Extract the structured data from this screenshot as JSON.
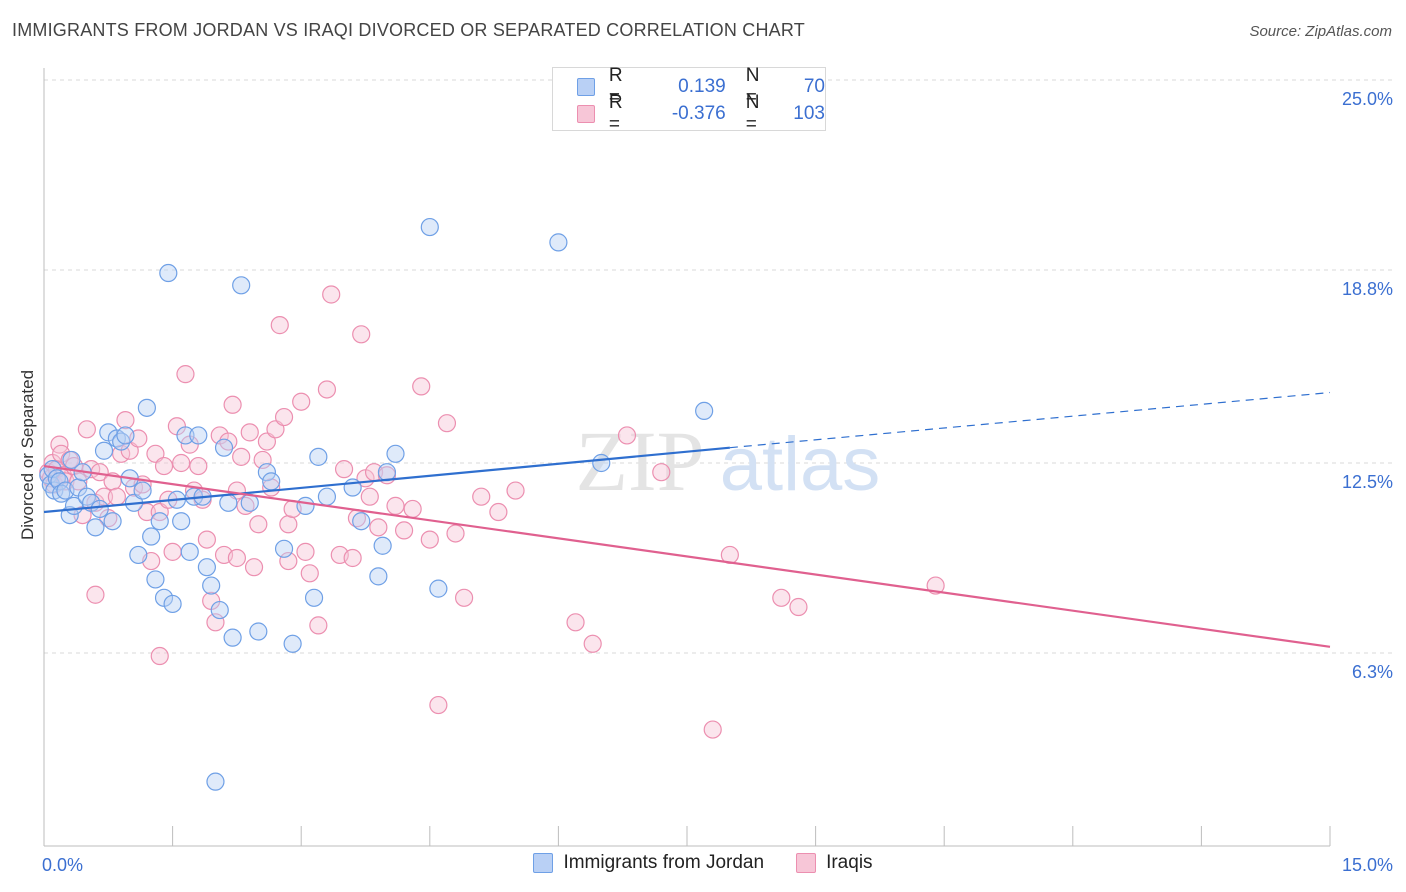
{
  "title": "IMMIGRANTS FROM JORDAN VS IRAQI DIVORCED OR SEPARATED CORRELATION CHART",
  "source": "Source: ZipAtlas.com",
  "watermark": {
    "zip": "ZIP",
    "atlas": "atlas"
  },
  "legend": {
    "rows": [
      {
        "r_label": "R =",
        "r_value": "0.139",
        "n_label": "N =",
        "n_value": "70"
      },
      {
        "r_label": "R =",
        "r_value": "-0.376",
        "n_label": "N =",
        "n_value": "103"
      }
    ]
  },
  "colors": {
    "blue": "#6fa0e6",
    "blue_fill": "#b9d0f5",
    "blue_line": "#2f6fcf",
    "pink": "#ec8fb0",
    "pink_fill": "#f7c6d7",
    "pink_line": "#e0608f",
    "tick_label": "#3b6fd1",
    "grid": "#d9d9d9"
  },
  "chart_data": {
    "type": "scatter",
    "xlabel": "",
    "ylabel": "Divorced or Separated",
    "xlim": [
      0,
      15
    ],
    "ylim": [
      0,
      25
    ],
    "x_tick_labels": [
      {
        "value": 0,
        "label": "0.0%"
      },
      {
        "value": 15,
        "label": "15.0%"
      }
    ],
    "y_tick_labels": [
      {
        "value": 6.3,
        "label": "6.3%"
      },
      {
        "value": 12.5,
        "label": "12.5%"
      },
      {
        "value": 18.8,
        "label": "18.8%"
      },
      {
        "value": 25.0,
        "label": "25.0%"
      }
    ],
    "series": [
      {
        "name": "Immigrants from Jordan",
        "color": "#6fa0e6",
        "trend": {
          "x": [
            0,
            8.0
          ],
          "y": [
            10.9,
            13.0
          ],
          "dashed_to": [
            15,
            14.8
          ]
        },
        "points": [
          [
            0.05,
            12.1
          ],
          [
            0.08,
            11.8
          ],
          [
            0.1,
            12.3
          ],
          [
            0.12,
            11.6
          ],
          [
            0.15,
            12.0
          ],
          [
            0.18,
            11.9
          ],
          [
            0.2,
            11.5
          ],
          [
            0.25,
            11.6
          ],
          [
            0.3,
            10.8
          ],
          [
            0.32,
            12.6
          ],
          [
            0.35,
            11.1
          ],
          [
            0.4,
            11.7
          ],
          [
            0.45,
            12.2
          ],
          [
            0.5,
            11.4
          ],
          [
            0.55,
            11.2
          ],
          [
            0.6,
            10.4
          ],
          [
            0.65,
            11.0
          ],
          [
            0.7,
            12.9
          ],
          [
            0.75,
            13.5
          ],
          [
            0.8,
            10.6
          ],
          [
            0.85,
            13.3
          ],
          [
            0.9,
            13.2
          ],
          [
            0.95,
            13.4
          ],
          [
            1.0,
            12.0
          ],
          [
            1.05,
            11.2
          ],
          [
            1.1,
            9.5
          ],
          [
            1.15,
            11.6
          ],
          [
            1.2,
            14.3
          ],
          [
            1.25,
            10.1
          ],
          [
            1.3,
            8.7
          ],
          [
            1.35,
            10.6
          ],
          [
            1.4,
            8.1
          ],
          [
            1.45,
            18.7
          ],
          [
            1.5,
            7.9
          ],
          [
            1.55,
            11.3
          ],
          [
            1.6,
            10.6
          ],
          [
            1.65,
            13.4
          ],
          [
            1.7,
            9.6
          ],
          [
            1.75,
            11.4
          ],
          [
            1.8,
            13.4
          ],
          [
            1.85,
            11.4
          ],
          [
            1.9,
            9.1
          ],
          [
            1.95,
            8.5
          ],
          [
            2.0,
            2.1
          ],
          [
            2.05,
            7.7
          ],
          [
            2.1,
            13.0
          ],
          [
            2.15,
            11.2
          ],
          [
            2.2,
            6.8
          ],
          [
            2.3,
            18.3
          ],
          [
            2.4,
            11.2
          ],
          [
            2.5,
            7.0
          ],
          [
            2.6,
            12.2
          ],
          [
            2.65,
            11.9
          ],
          [
            2.8,
            9.7
          ],
          [
            2.9,
            6.6
          ],
          [
            3.05,
            11.1
          ],
          [
            3.15,
            8.1
          ],
          [
            3.2,
            12.7
          ],
          [
            3.3,
            11.4
          ],
          [
            3.6,
            11.7
          ],
          [
            3.7,
            10.6
          ],
          [
            3.9,
            8.8
          ],
          [
            3.95,
            9.8
          ],
          [
            4.0,
            12.2
          ],
          [
            4.1,
            12.8
          ],
          [
            4.5,
            20.2
          ],
          [
            4.6,
            8.4
          ],
          [
            6.0,
            19.7
          ],
          [
            6.5,
            12.5
          ],
          [
            7.7,
            14.2
          ]
        ]
      },
      {
        "name": "Iraqis",
        "color": "#ec8fb0",
        "trend": {
          "x": [
            0,
            15
          ],
          "y": [
            12.4,
            6.5
          ]
        },
        "points": [
          [
            0.05,
            12.2
          ],
          [
            0.08,
            12.0
          ],
          [
            0.1,
            12.5
          ],
          [
            0.12,
            11.8
          ],
          [
            0.15,
            12.3
          ],
          [
            0.18,
            13.1
          ],
          [
            0.2,
            12.8
          ],
          [
            0.22,
            12.1
          ],
          [
            0.25,
            11.9
          ],
          [
            0.3,
            12.6
          ],
          [
            0.35,
            12.4
          ],
          [
            0.4,
            11.9
          ],
          [
            0.45,
            10.8
          ],
          [
            0.5,
            13.6
          ],
          [
            0.55,
            12.3
          ],
          [
            0.6,
            11.2
          ],
          [
            0.65,
            12.2
          ],
          [
            0.7,
            11.4
          ],
          [
            0.75,
            10.7
          ],
          [
            0.8,
            11.9
          ],
          [
            0.85,
            11.4
          ],
          [
            0.9,
            12.8
          ],
          [
            0.95,
            13.9
          ],
          [
            1.0,
            12.9
          ],
          [
            1.05,
            11.7
          ],
          [
            1.1,
            13.3
          ],
          [
            1.15,
            11.8
          ],
          [
            1.2,
            10.9
          ],
          [
            1.25,
            9.3
          ],
          [
            1.3,
            12.8
          ],
          [
            1.35,
            10.9
          ],
          [
            1.4,
            12.4
          ],
          [
            1.45,
            11.3
          ],
          [
            1.5,
            9.6
          ],
          [
            1.55,
            13.7
          ],
          [
            1.6,
            12.5
          ],
          [
            1.65,
            15.4
          ],
          [
            1.7,
            13.1
          ],
          [
            1.75,
            11.6
          ],
          [
            1.8,
            12.4
          ],
          [
            1.85,
            11.3
          ],
          [
            1.9,
            10.0
          ],
          [
            1.95,
            8.0
          ],
          [
            2.0,
            7.3
          ],
          [
            2.05,
            13.4
          ],
          [
            2.1,
            9.5
          ],
          [
            2.15,
            13.2
          ],
          [
            2.2,
            14.4
          ],
          [
            2.25,
            11.6
          ],
          [
            2.3,
            12.7
          ],
          [
            2.35,
            11.1
          ],
          [
            2.4,
            13.5
          ],
          [
            2.45,
            9.1
          ],
          [
            2.5,
            10.5
          ],
          [
            2.55,
            12.6
          ],
          [
            2.6,
            13.2
          ],
          [
            2.65,
            11.7
          ],
          [
            2.7,
            13.6
          ],
          [
            2.75,
            17.0
          ],
          [
            2.8,
            14.0
          ],
          [
            2.85,
            10.5
          ],
          [
            2.9,
            11.0
          ],
          [
            3.0,
            14.5
          ],
          [
            3.05,
            9.6
          ],
          [
            3.1,
            8.9
          ],
          [
            3.2,
            7.2
          ],
          [
            3.3,
            14.9
          ],
          [
            3.35,
            18.0
          ],
          [
            3.45,
            9.5
          ],
          [
            3.5,
            12.3
          ],
          [
            3.6,
            9.4
          ],
          [
            3.65,
            10.7
          ],
          [
            3.7,
            16.7
          ],
          [
            3.75,
            12.0
          ],
          [
            3.8,
            11.4
          ],
          [
            3.85,
            12.2
          ],
          [
            3.9,
            10.4
          ],
          [
            4.0,
            12.1
          ],
          [
            4.1,
            11.1
          ],
          [
            4.2,
            10.3
          ],
          [
            4.3,
            11.0
          ],
          [
            4.4,
            15.0
          ],
          [
            4.5,
            10.0
          ],
          [
            4.6,
            4.6
          ],
          [
            4.7,
            13.8
          ],
          [
            4.8,
            10.2
          ],
          [
            4.9,
            8.1
          ],
          [
            5.1,
            11.4
          ],
          [
            5.3,
            10.9
          ],
          [
            5.5,
            11.6
          ],
          [
            6.2,
            7.3
          ],
          [
            6.4,
            6.6
          ],
          [
            6.8,
            13.4
          ],
          [
            7.2,
            12.2
          ],
          [
            7.8,
            3.8
          ],
          [
            8.0,
            9.5
          ],
          [
            8.6,
            8.1
          ],
          [
            8.8,
            7.8
          ],
          [
            10.4,
            8.5
          ],
          [
            0.6,
            8.2
          ],
          [
            1.35,
            6.2
          ],
          [
            2.25,
            9.4
          ],
          [
            2.85,
            9.3
          ]
        ]
      }
    ]
  },
  "bottom_legend": [
    {
      "label": "Immigrants from Jordan"
    },
    {
      "label": "Iraqis"
    }
  ]
}
